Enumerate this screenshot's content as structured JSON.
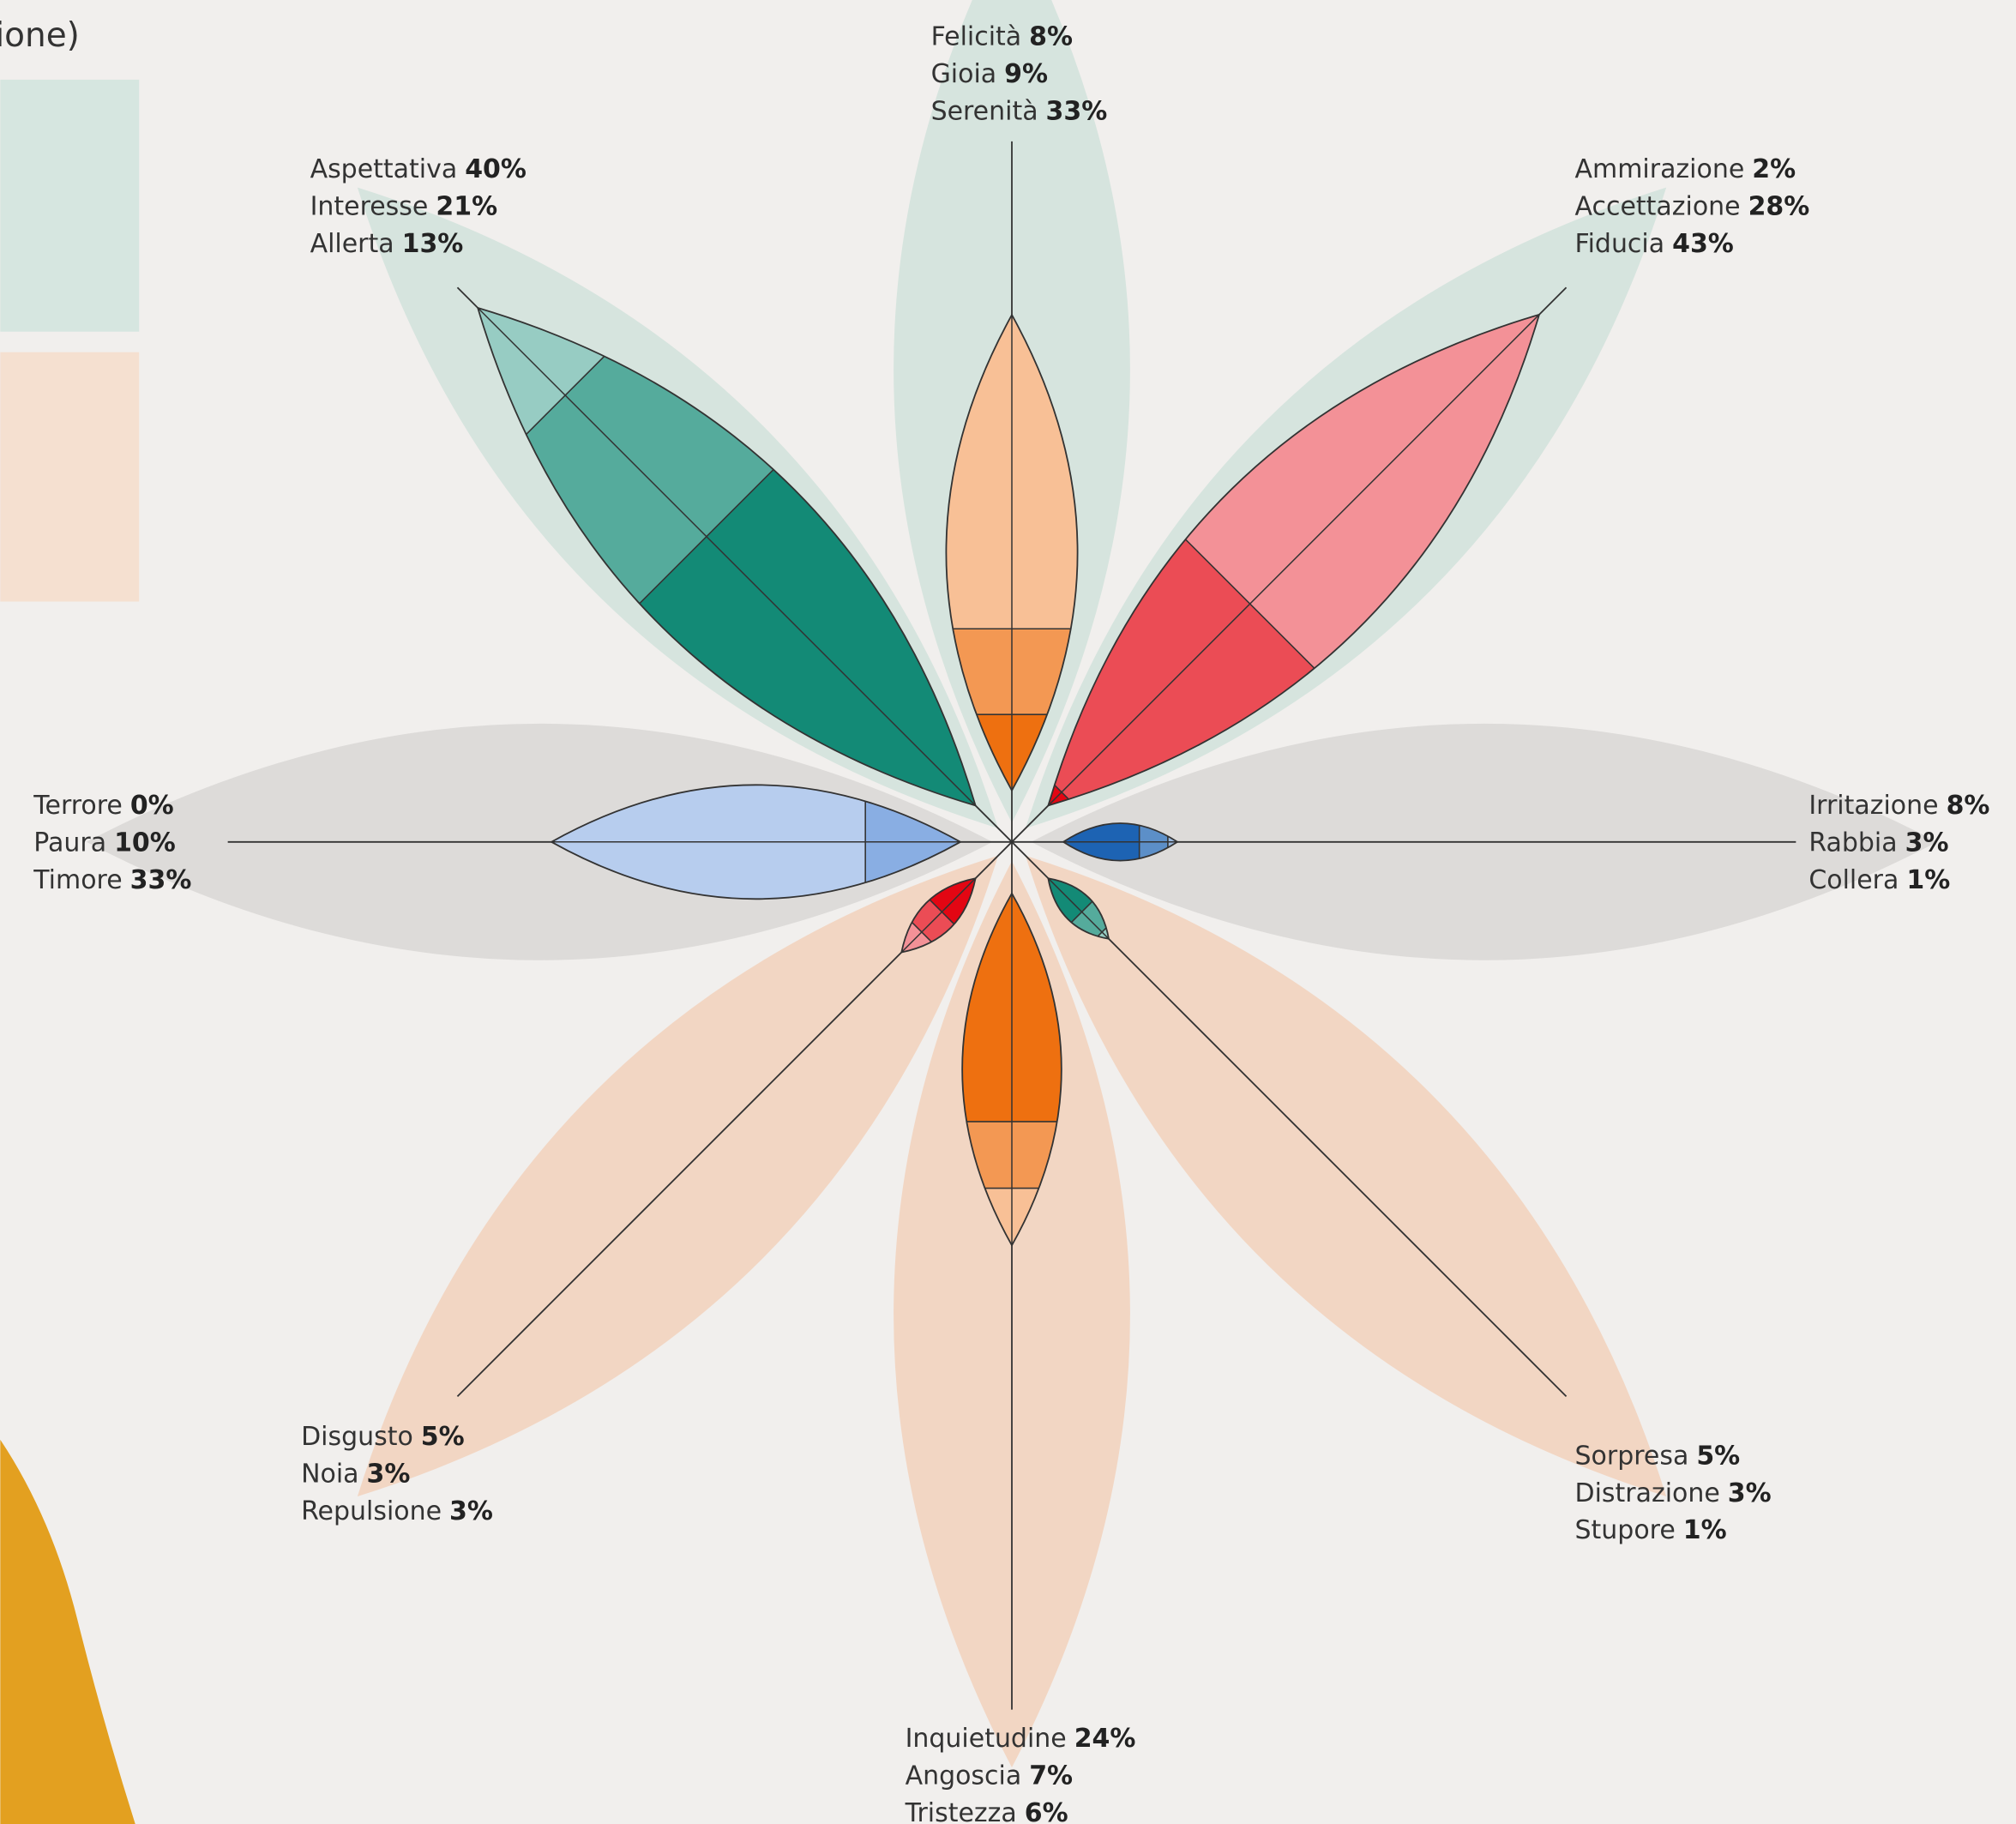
{
  "legend_fragment": "ione)",
  "chart_data": {
    "type": "flower",
    "petals": [
      {
        "names": [
          "Felicità",
          "Gioia",
          "Serenità"
        ],
        "values": [
          8,
          9,
          33
        ],
        "value_labels": [
          "8%",
          "9%",
          "33%"
        ],
        "color": "#ee7010",
        "bg": "#d6e4de"
      },
      {
        "names": [
          "Ammirazione",
          "Accettazione",
          "Fiducia"
        ],
        "values": [
          2,
          28,
          43
        ],
        "value_labels": [
          "2%",
          "28%",
          "43%"
        ],
        "color": "#e30613",
        "bg": "#d6e4de"
      },
      {
        "names": [
          "Irritazione",
          "Rabbia",
          "Collera"
        ],
        "values": [
          8,
          3,
          1
        ],
        "value_labels": [
          "8%",
          "3%",
          "1%"
        ],
        "color": "#1d63b3",
        "bg": "#dddbd9"
      },
      {
        "names": [
          "Sorpresa",
          "Distrazione",
          "Stupore"
        ],
        "values": [
          5,
          3,
          1
        ],
        "value_labels": [
          "5%",
          "3%",
          "1%"
        ],
        "color": "#138a76",
        "bg": "#f2d6c3"
      },
      {
        "names": [
          "Inquietudine",
          "Angoscia",
          "Tristezza"
        ],
        "values": [
          24,
          7,
          6
        ],
        "value_labels": [
          "24%",
          "7%",
          "6%"
        ],
        "color": "#ee7010",
        "bg": "#f2d6c3"
      },
      {
        "names": [
          "Disgusto",
          "Noia",
          "Repulsione"
        ],
        "values": [
          5,
          3,
          3
        ],
        "value_labels": [
          "5%",
          "3%",
          "3%"
        ],
        "color": "#e30613",
        "bg": "#f2d6c3"
      },
      {
        "names": [
          "Terrore",
          "Paura",
          "Timore"
        ],
        "values": [
          0,
          10,
          33
        ],
        "value_labels": [
          "0%",
          "10%",
          "33%"
        ],
        "color": "#5b8ed8",
        "bg": "#dddbd9"
      },
      {
        "names": [
          "Aspettativa",
          "Interesse",
          "Allerta"
        ],
        "values": [
          40,
          21,
          13
        ],
        "value_labels": [
          "40%",
          "21%",
          "13%"
        ],
        "color": "#138a76",
        "bg": "#d6e4de"
      }
    ]
  }
}
